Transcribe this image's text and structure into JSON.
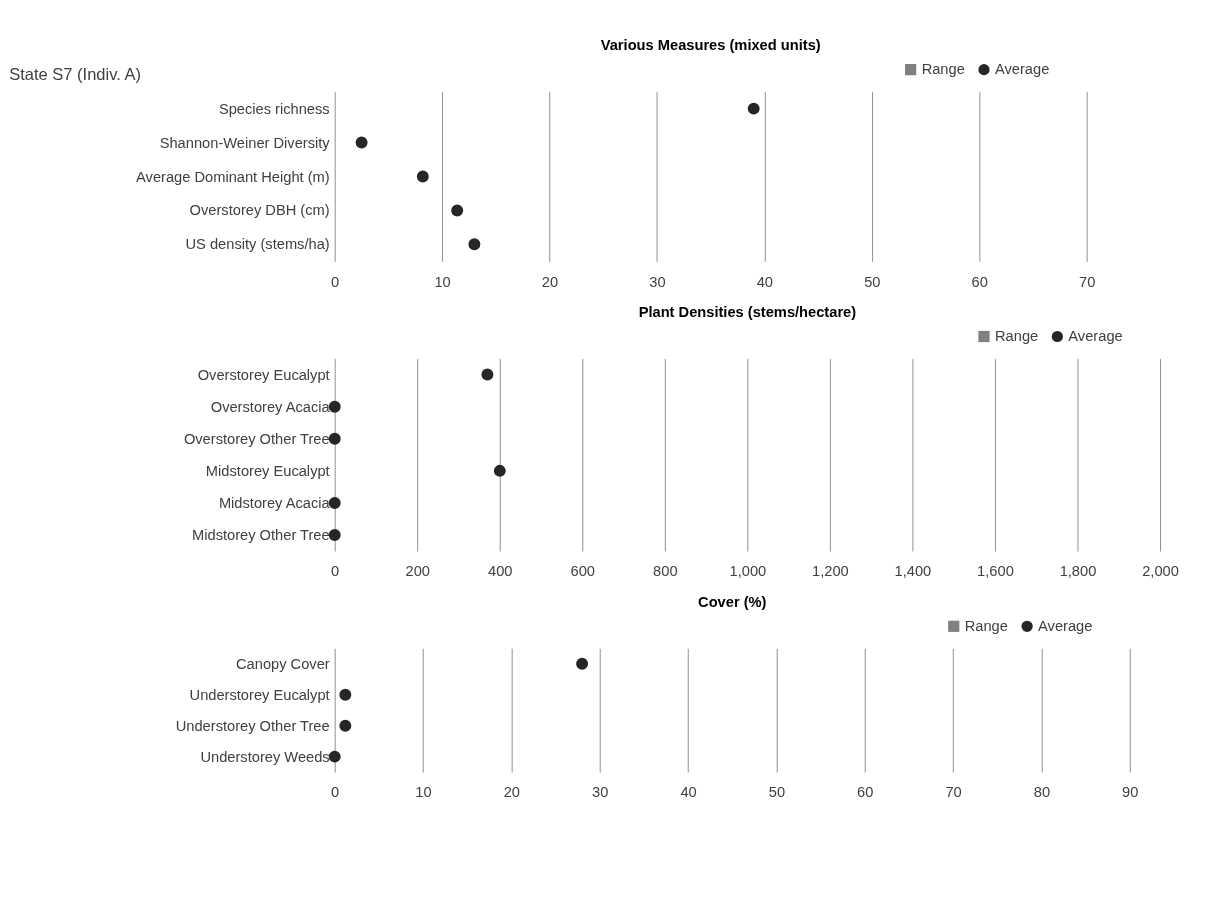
{
  "chart_data": [
    {
      "type": "scatter",
      "orientation": "horizontal",
      "title": "Various Measures (mixed units)",
      "annotations": [
        "State S7 (Indiv. A)"
      ],
      "categories": [
        "Species richness",
        "Shannon-Weiner Diversity",
        "Average Dominant Height (m)",
        "Overstorey DBH (cm)",
        "US density (stems/ha)"
      ],
      "series": [
        {
          "name": "Range",
          "type": "bar",
          "color": "#808080",
          "values": [
            null,
            null,
            null,
            null,
            null
          ]
        },
        {
          "name": "Average",
          "color": "#262626",
          "values": [
            39,
            2.5,
            8.2,
            11.4,
            13
          ]
        }
      ],
      "xlim": [
        0,
        70
      ],
      "xticks": [
        0,
        10,
        20,
        30,
        40,
        50,
        60,
        70
      ],
      "grid": "x",
      "legend": "top right",
      "marker": "circle"
    },
    {
      "type": "scatter",
      "orientation": "horizontal",
      "title": "Plant Densities (stems/hectare)",
      "categories": [
        "Overstorey Eucalypt",
        "Overstorey Acacia",
        "Overstorey Other Tree",
        "Midstorey Eucalypt",
        "Midstorey Acacia",
        "Midstorey Other Tree"
      ],
      "series": [
        {
          "name": "Range",
          "type": "bar",
          "color": "#808080",
          "values": [
            null,
            null,
            null,
            null,
            null,
            null
          ]
        },
        {
          "name": "Average",
          "color": "#262626",
          "values": [
            370,
            0,
            0,
            400,
            0,
            0
          ]
        }
      ],
      "xlim": [
        0,
        2000
      ],
      "xticks": [
        0,
        200,
        400,
        600,
        800,
        {
          "value": 1000,
          "label": "1,000"
        },
        {
          "value": 1200,
          "label": "1,200"
        },
        {
          "value": 1400,
          "label": "1,400"
        },
        {
          "value": 1600,
          "label": "1,600"
        },
        {
          "value": 1800,
          "label": "1,800"
        },
        {
          "value": 2000,
          "label": "2,000"
        }
      ],
      "grid": "x",
      "legend": "top right",
      "marker": "circle"
    },
    {
      "type": "scatter",
      "orientation": "horizontal",
      "title": "Cover (%)",
      "categories": [
        "Canopy Cover",
        "Understorey Eucalypt",
        "Understorey Other Tree",
        "Understorey Weeds"
      ],
      "series": [
        {
          "name": "Range",
          "type": "bar",
          "color": "#808080",
          "values": [
            null,
            null,
            null,
            null
          ]
        },
        {
          "name": "Average",
          "color": "#262626",
          "values": [
            28,
            1.2,
            1.2,
            0
          ]
        }
      ],
      "xlim": [
        0,
        90
      ],
      "xticks": [
        0,
        10,
        20,
        30,
        40,
        50,
        60,
        70,
        80,
        90
      ],
      "grid": "x",
      "legend": "top right",
      "marker": "circle"
    }
  ]
}
